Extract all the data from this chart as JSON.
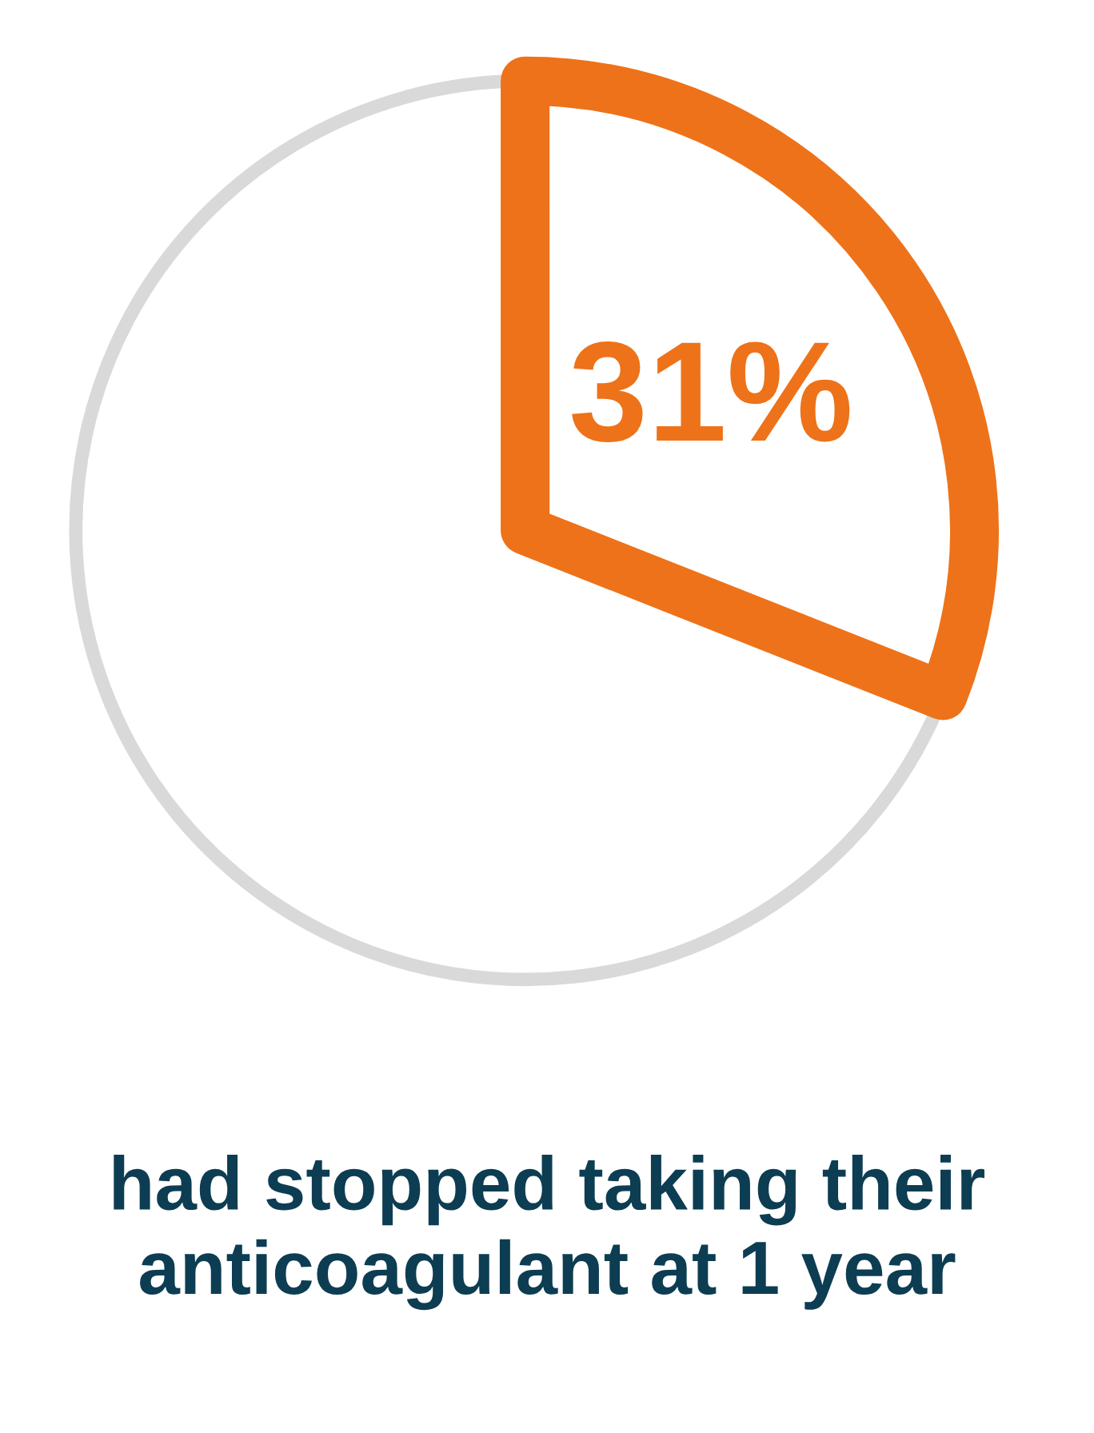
{
  "chart_data": {
    "type": "pie",
    "categories": [
      null,
      null
    ],
    "values": [
      31,
      69
    ],
    "colors": [
      "#ee7219",
      "#d9d9d9"
    ],
    "value_labels": [
      "31%",
      null
    ],
    "annotations": [
      "had stopped taking their anticoagulant at 1 year"
    ]
  }
}
